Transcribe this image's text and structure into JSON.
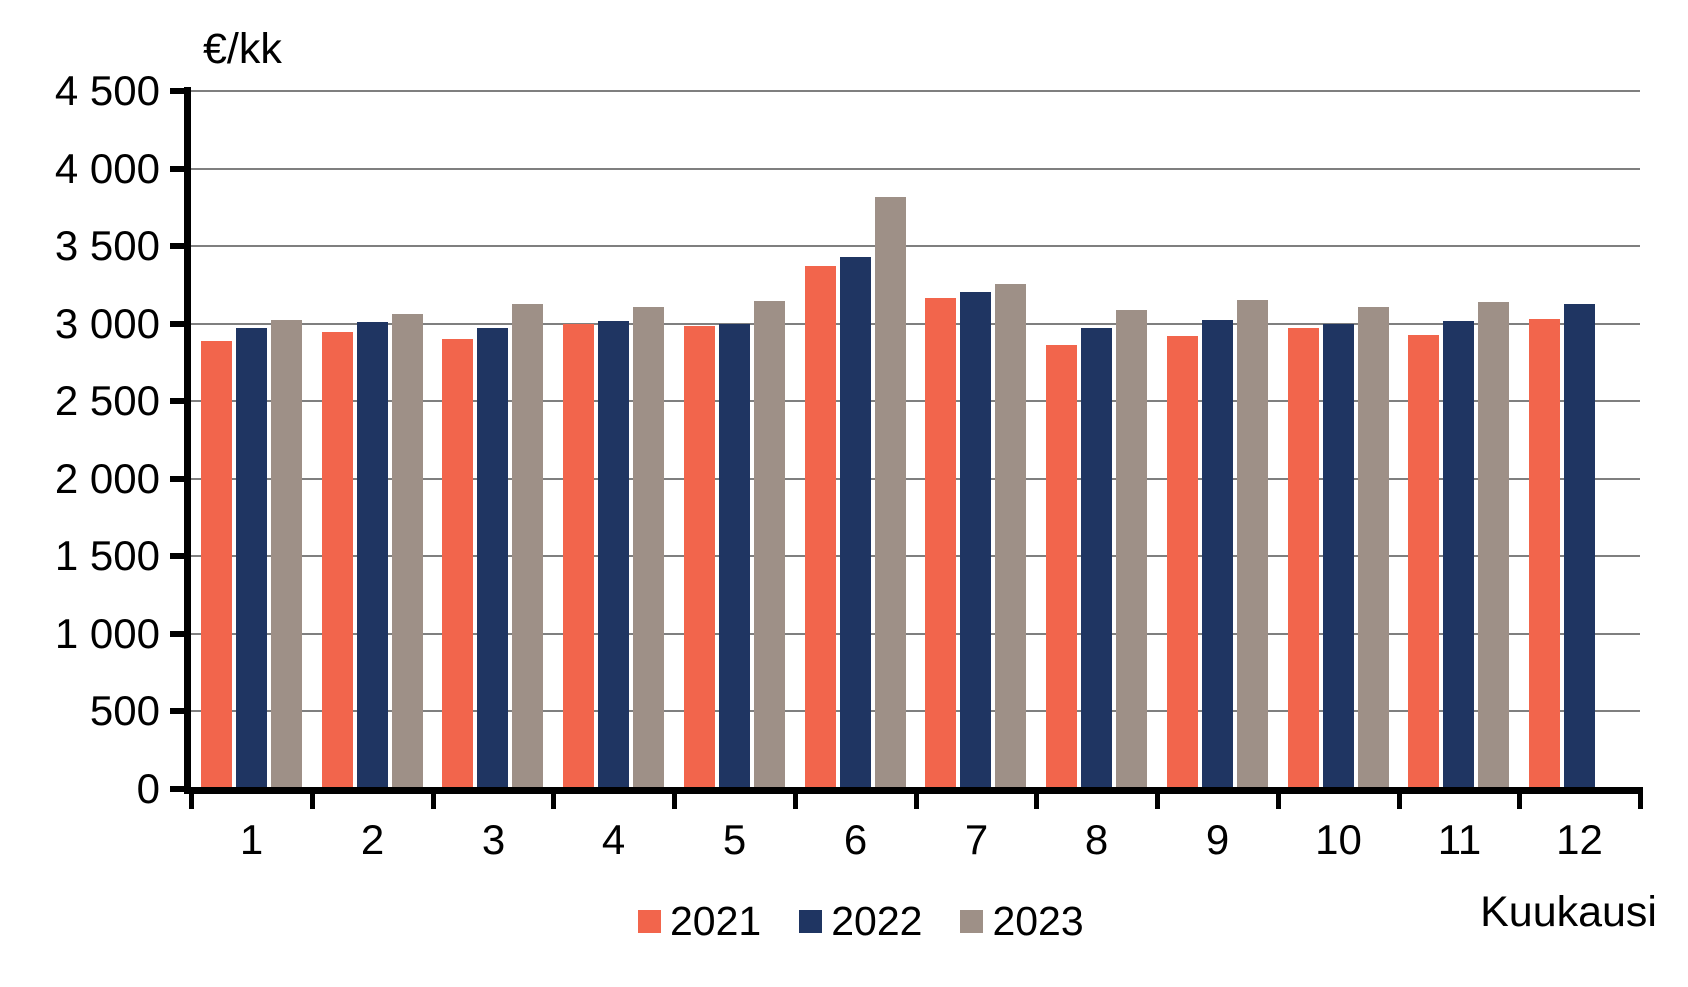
{
  "chart_data": {
    "type": "bar",
    "title": "",
    "y_axis_title": "€/kk",
    "x_axis_title": "Kuukausi",
    "categories": [
      "1",
      "2",
      "3",
      "4",
      "5",
      "6",
      "7",
      "8",
      "9",
      "10",
      "11",
      "12"
    ],
    "series": [
      {
        "name": "2021",
        "color": "#F2654C",
        "values": [
          2890,
          2945,
          2900,
          3000,
          2985,
          3370,
          3165,
          2865,
          2920,
          2970,
          2930,
          3030
        ]
      },
      {
        "name": "2022",
        "color": "#1F3562",
        "values": [
          2970,
          3010,
          2975,
          3015,
          3000,
          3430,
          3205,
          2970,
          3025,
          3000,
          3020,
          3130
        ]
      },
      {
        "name": "2023",
        "color": "#9E9087",
        "values": [
          3025,
          3065,
          3130,
          3110,
          3145,
          3815,
          3255,
          3085,
          3155,
          3110,
          3140,
          null
        ]
      }
    ],
    "ylim": [
      0,
      4500
    ],
    "ytick_interval": 500,
    "ytick_labels": [
      "0",
      "500",
      "1 000",
      "1 500",
      "2 000",
      "2 500",
      "3 000",
      "3 500",
      "4 000",
      "4 500"
    ],
    "grid": "horizontal",
    "gridline_color": "#7F7F7F",
    "axis_color": "#000000",
    "background": "#FFFFFF",
    "legend_position": "bottom"
  }
}
